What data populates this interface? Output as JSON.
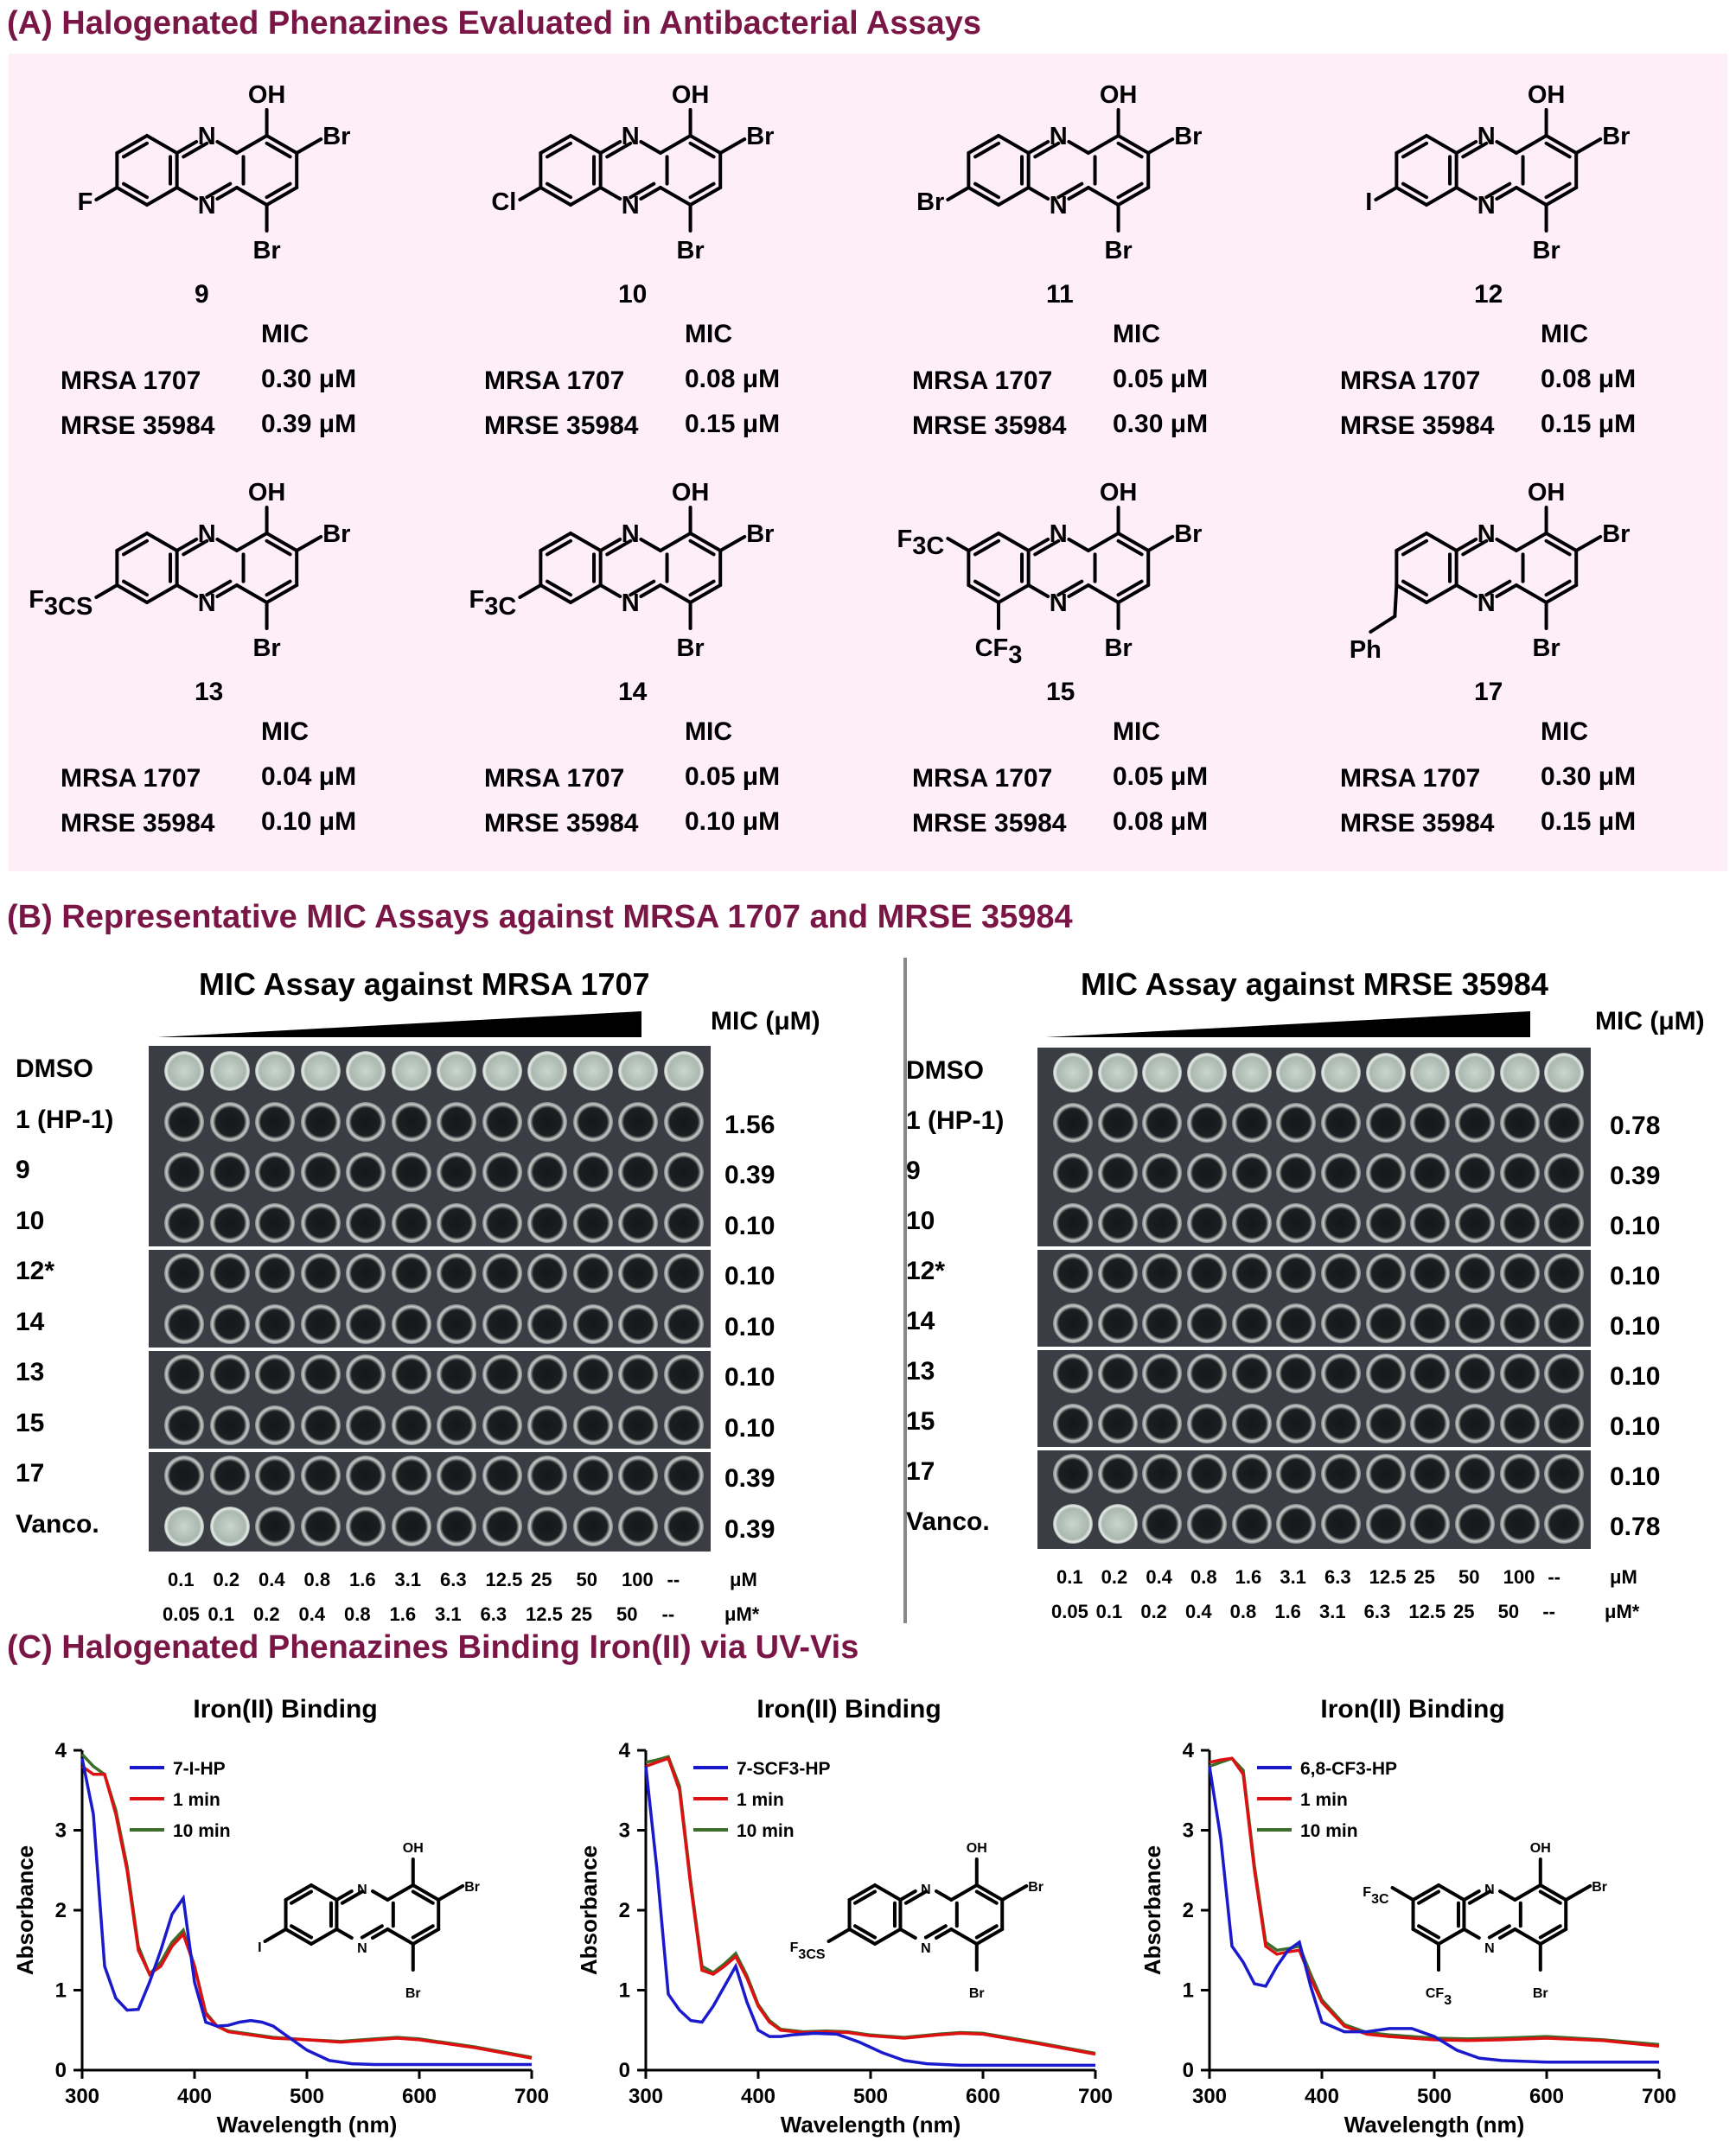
{
  "panelA": {
    "title": "(A) Halogenated Phenazines Evaluated in Antibacterial Assays",
    "mic_header": "MIC",
    "compounds": [
      {
        "id": "9",
        "r7": "F",
        "r6": "",
        "r8": "",
        "mrsa_label": "MRSA 1707",
        "mrsa": "0.30 μM",
        "mrse_label": "MRSE 35984",
        "mrse": "0.39 μM"
      },
      {
        "id": "10",
        "r7": "Cl",
        "r6": "",
        "r8": "",
        "mrsa_label": "MRSA 1707",
        "mrsa": "0.08 μM",
        "mrse_label": "MRSE 35984",
        "mrse": "0.15 μM"
      },
      {
        "id": "11",
        "r7": "Br",
        "r6": "",
        "r8": "",
        "mrsa_label": "MRSA 1707",
        "mrsa": "0.05 μM",
        "mrse_label": "MRSE 35984",
        "mrse": "0.30 μM"
      },
      {
        "id": "12",
        "r7": "I",
        "r6": "",
        "r8": "",
        "mrsa_label": "MRSA 1707",
        "mrsa": "0.08 μM",
        "mrse_label": "MRSE 35984",
        "mrse": "0.15 μM"
      },
      {
        "id": "13",
        "r7": "F3CS",
        "r6": "",
        "r8": "",
        "mrsa_label": "MRSA 1707",
        "mrsa": "0.04 μM",
        "mrse_label": "MRSE 35984",
        "mrse": "0.10 μM"
      },
      {
        "id": "14",
        "r7": "F3C",
        "r6": "",
        "r8": "",
        "mrsa_label": "MRSA 1707",
        "mrsa": "0.05 μM",
        "mrse_label": "MRSE 35984",
        "mrse": "0.10 μM"
      },
      {
        "id": "15",
        "r7": "",
        "r6": "F3C",
        "r8": "CF3",
        "mrsa_label": "MRSA 1707",
        "mrsa": "0.05 μM",
        "mrse_label": "MRSE 35984",
        "mrse": "0.08 μM"
      },
      {
        "id": "17",
        "r7": "Ph",
        "r6": "",
        "r8": "",
        "mrsa_label": "MRSA 1707",
        "mrsa": "0.30 μM",
        "mrse_label": "MRSE 35984",
        "mrse": "0.15 μM"
      }
    ],
    "atoms": {
      "oh": "OH",
      "br": "Br",
      "n": "N"
    }
  },
  "panelB": {
    "title": "(B) Representative MIC Assays against MRSA 1707 and MRSE 35984",
    "mic_header": "MIC (μM)",
    "conc_row1": [
      "0.1",
      "0.2",
      "0.4",
      "0.8",
      "1.6",
      "3.1",
      "6.3",
      "12.5",
      "25",
      "50",
      "100",
      "--",
      "μM"
    ],
    "conc_row2": [
      "0.05",
      "0.1",
      "0.2",
      "0.4",
      "0.8",
      "1.6",
      "3.1",
      "6.3",
      "12.5",
      "25",
      "50",
      "--",
      "μM*"
    ],
    "assays": [
      {
        "title": "MIC Assay against MRSA 1707",
        "rows": [
          {
            "label": "DMSO",
            "mic": ""
          },
          {
            "label": "1 (HP-1)",
            "mic": "1.56"
          },
          {
            "label": "9",
            "mic": "0.39"
          },
          {
            "label": "10",
            "mic": "0.10"
          },
          {
            "label": "12*",
            "mic": "0.10"
          },
          {
            "label": "14",
            "mic": "0.10"
          },
          {
            "label": "13",
            "mic": "0.10"
          },
          {
            "label": "15",
            "mic": "0.10"
          },
          {
            "label": "17",
            "mic": "0.39"
          },
          {
            "label": "Vanco.",
            "mic": "0.39"
          }
        ]
      },
      {
        "title": "MIC Assay against MRSE 35984",
        "rows": [
          {
            "label": "DMSO",
            "mic": ""
          },
          {
            "label": "1 (HP-1)",
            "mic": "0.78"
          },
          {
            "label": "9",
            "mic": "0.39"
          },
          {
            "label": "10",
            "mic": "0.10"
          },
          {
            "label": "12*",
            "mic": "0.10"
          },
          {
            "label": "14",
            "mic": "0.10"
          },
          {
            "label": "13",
            "mic": "0.10"
          },
          {
            "label": "15",
            "mic": "0.10"
          },
          {
            "label": "17",
            "mic": "0.10"
          },
          {
            "label": "Vanco.",
            "mic": "0.78"
          }
        ]
      }
    ]
  },
  "panelC": {
    "title": "(C) Halogenated Phenazines Binding Iron(II) via UV-Vis"
  },
  "chart_data": [
    {
      "type": "line",
      "title": "Iron(II) Binding",
      "xlabel": "Wavelength (nm)",
      "ylabel": "Absorbance",
      "xlim": [
        300,
        700
      ],
      "ylim": [
        0,
        4
      ],
      "xticks": [
        300,
        400,
        500,
        600,
        700
      ],
      "yticks": [
        0,
        1,
        2,
        3,
        4
      ],
      "legend_position": "top-left",
      "structure_r7": "I",
      "series": [
        {
          "name": "7-I-HP",
          "color": "#1a1acc",
          "x": [
            300,
            310,
            320,
            330,
            340,
            350,
            360,
            370,
            380,
            390,
            400,
            410,
            420,
            430,
            440,
            450,
            460,
            470,
            480,
            490,
            500,
            520,
            540,
            560,
            580,
            600,
            650,
            700
          ],
          "y": [
            3.9,
            3.2,
            1.3,
            0.9,
            0.75,
            0.76,
            1.1,
            1.5,
            1.95,
            2.15,
            1.1,
            0.6,
            0.55,
            0.56,
            0.6,
            0.62,
            0.6,
            0.55,
            0.45,
            0.35,
            0.25,
            0.12,
            0.08,
            0.07,
            0.07,
            0.07,
            0.07,
            0.07
          ]
        },
        {
          "name": "1 min",
          "color": "#dd1111",
          "x": [
            300,
            310,
            320,
            330,
            340,
            350,
            360,
            370,
            380,
            390,
            400,
            410,
            420,
            430,
            450,
            470,
            500,
            530,
            560,
            580,
            600,
            650,
            700
          ],
          "y": [
            3.8,
            3.7,
            3.7,
            3.2,
            2.5,
            1.5,
            1.2,
            1.3,
            1.55,
            1.7,
            1.3,
            0.7,
            0.55,
            0.48,
            0.44,
            0.4,
            0.38,
            0.35,
            0.38,
            0.4,
            0.38,
            0.28,
            0.15
          ]
        },
        {
          "name": "10 min",
          "color": "#3a6e2a",
          "x": [
            300,
            310,
            320,
            330,
            340,
            350,
            360,
            370,
            380,
            390,
            400,
            410,
            420,
            430,
            450,
            470,
            500,
            530,
            560,
            580,
            600,
            650,
            700
          ],
          "y": [
            3.95,
            3.8,
            3.7,
            3.25,
            2.55,
            1.55,
            1.2,
            1.35,
            1.6,
            1.75,
            1.3,
            0.72,
            0.55,
            0.49,
            0.45,
            0.41,
            0.38,
            0.36,
            0.39,
            0.41,
            0.39,
            0.29,
            0.16
          ]
        }
      ]
    },
    {
      "type": "line",
      "title": "Iron(II) Binding",
      "xlabel": "Wavelength (nm)",
      "ylabel": "Absorbance",
      "xlim": [
        300,
        700
      ],
      "ylim": [
        0,
        4
      ],
      "xticks": [
        300,
        400,
        500,
        600,
        700
      ],
      "yticks": [
        0,
        1,
        2,
        3,
        4
      ],
      "legend_position": "top-left",
      "structure_r7": "F3CS",
      "series": [
        {
          "name": "7-SCF3-HP",
          "color": "#1a1acc",
          "x": [
            300,
            310,
            320,
            330,
            340,
            350,
            360,
            370,
            380,
            390,
            400,
            410,
            420,
            430,
            450,
            470,
            490,
            510,
            530,
            550,
            580,
            620,
            660,
            700
          ],
          "y": [
            3.8,
            2.5,
            0.95,
            0.75,
            0.62,
            0.6,
            0.8,
            1.05,
            1.3,
            0.85,
            0.5,
            0.42,
            0.42,
            0.44,
            0.46,
            0.45,
            0.35,
            0.22,
            0.12,
            0.08,
            0.06,
            0.06,
            0.06,
            0.06
          ]
        },
        {
          "name": "1 min",
          "color": "#dd1111",
          "x": [
            300,
            310,
            320,
            330,
            340,
            350,
            360,
            370,
            380,
            390,
            400,
            410,
            420,
            440,
            460,
            480,
            500,
            530,
            560,
            580,
            600,
            650,
            700
          ],
          "y": [
            3.8,
            3.85,
            3.9,
            3.5,
            2.3,
            1.25,
            1.2,
            1.3,
            1.42,
            1.15,
            0.8,
            0.6,
            0.5,
            0.47,
            0.48,
            0.47,
            0.43,
            0.4,
            0.44,
            0.46,
            0.45,
            0.33,
            0.2
          ]
        },
        {
          "name": "10 min",
          "color": "#3a6e2a",
          "x": [
            300,
            310,
            320,
            330,
            340,
            350,
            360,
            370,
            380,
            390,
            400,
            410,
            420,
            440,
            460,
            480,
            500,
            530,
            560,
            580,
            600,
            650,
            700
          ],
          "y": [
            3.85,
            3.88,
            3.92,
            3.55,
            2.35,
            1.3,
            1.22,
            1.33,
            1.46,
            1.18,
            0.82,
            0.62,
            0.51,
            0.48,
            0.49,
            0.48,
            0.44,
            0.41,
            0.45,
            0.47,
            0.46,
            0.34,
            0.21
          ]
        }
      ]
    },
    {
      "type": "line",
      "title": "Iron(II) Binding",
      "xlabel": "Wavelength (nm)",
      "ylabel": "Absorbance",
      "xlim": [
        300,
        700
      ],
      "ylim": [
        0,
        4
      ],
      "xticks": [
        300,
        400,
        500,
        600,
        700
      ],
      "yticks": [
        0,
        1,
        2,
        3,
        4
      ],
      "legend_position": "top-left",
      "structure_r6": "F3C",
      "structure_r8": "CF3",
      "series": [
        {
          "name": "6,8-CF3-HP",
          "color": "#1a1acc",
          "x": [
            300,
            310,
            320,
            330,
            340,
            350,
            360,
            370,
            380,
            390,
            400,
            420,
            440,
            460,
            480,
            500,
            520,
            540,
            560,
            600,
            650,
            700
          ],
          "y": [
            3.8,
            2.9,
            1.55,
            1.35,
            1.08,
            1.05,
            1.3,
            1.5,
            1.6,
            1.05,
            0.6,
            0.48,
            0.48,
            0.52,
            0.52,
            0.42,
            0.25,
            0.15,
            0.12,
            0.1,
            0.1,
            0.1
          ]
        },
        {
          "name": "1 min",
          "color": "#dd1111",
          "x": [
            300,
            310,
            320,
            330,
            340,
            350,
            360,
            370,
            380,
            390,
            400,
            420,
            440,
            460,
            480,
            500,
            530,
            560,
            600,
            650,
            700
          ],
          "y": [
            3.85,
            3.88,
            3.9,
            3.7,
            2.5,
            1.55,
            1.45,
            1.48,
            1.5,
            1.15,
            0.85,
            0.55,
            0.45,
            0.42,
            0.4,
            0.38,
            0.37,
            0.38,
            0.4,
            0.37,
            0.3
          ]
        },
        {
          "name": "10 min",
          "color": "#3a6e2a",
          "x": [
            300,
            310,
            320,
            330,
            340,
            350,
            360,
            370,
            380,
            390,
            400,
            420,
            440,
            460,
            480,
            500,
            530,
            560,
            600,
            650,
            700
          ],
          "y": [
            3.8,
            3.85,
            3.9,
            3.75,
            2.55,
            1.6,
            1.5,
            1.52,
            1.55,
            1.2,
            0.88,
            0.57,
            0.47,
            0.44,
            0.42,
            0.4,
            0.39,
            0.4,
            0.42,
            0.38,
            0.32
          ]
        }
      ]
    }
  ]
}
